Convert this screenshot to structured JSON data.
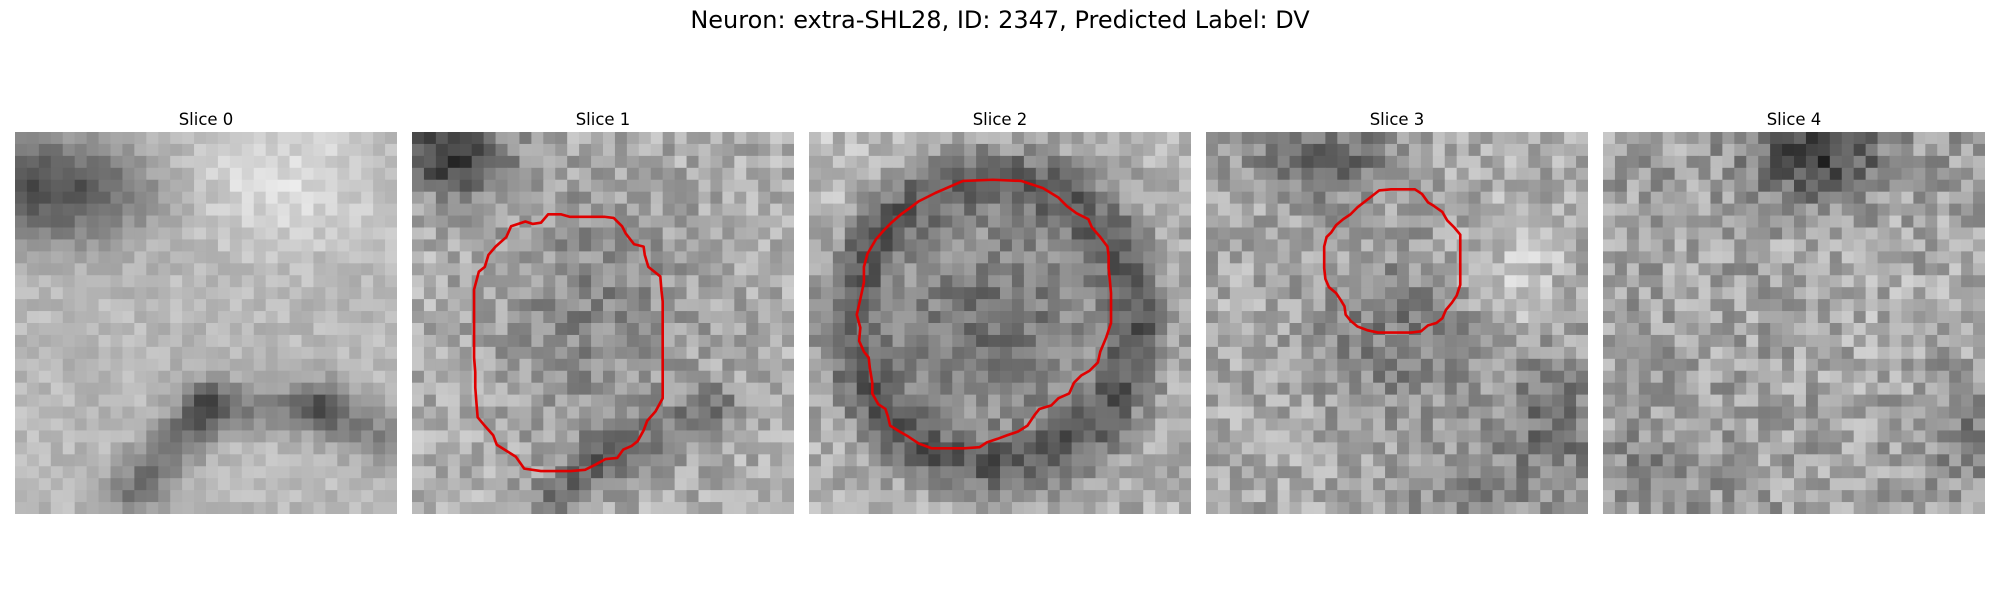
{
  "figure": {
    "title": "Neuron: extra-SHL28, ID: 2347, Predicted Label: DV"
  },
  "panels": [
    {
      "title": "Slice 0",
      "has_contour": false
    },
    {
      "title": "Slice 1",
      "has_contour": true
    },
    {
      "title": "Slice 2",
      "has_contour": true
    },
    {
      "title": "Slice 3",
      "has_contour": true
    },
    {
      "title": "Slice 4",
      "has_contour": false
    }
  ],
  "colors": {
    "contour": "#e00000",
    "background": "#ffffff",
    "colormap": "gray"
  }
}
